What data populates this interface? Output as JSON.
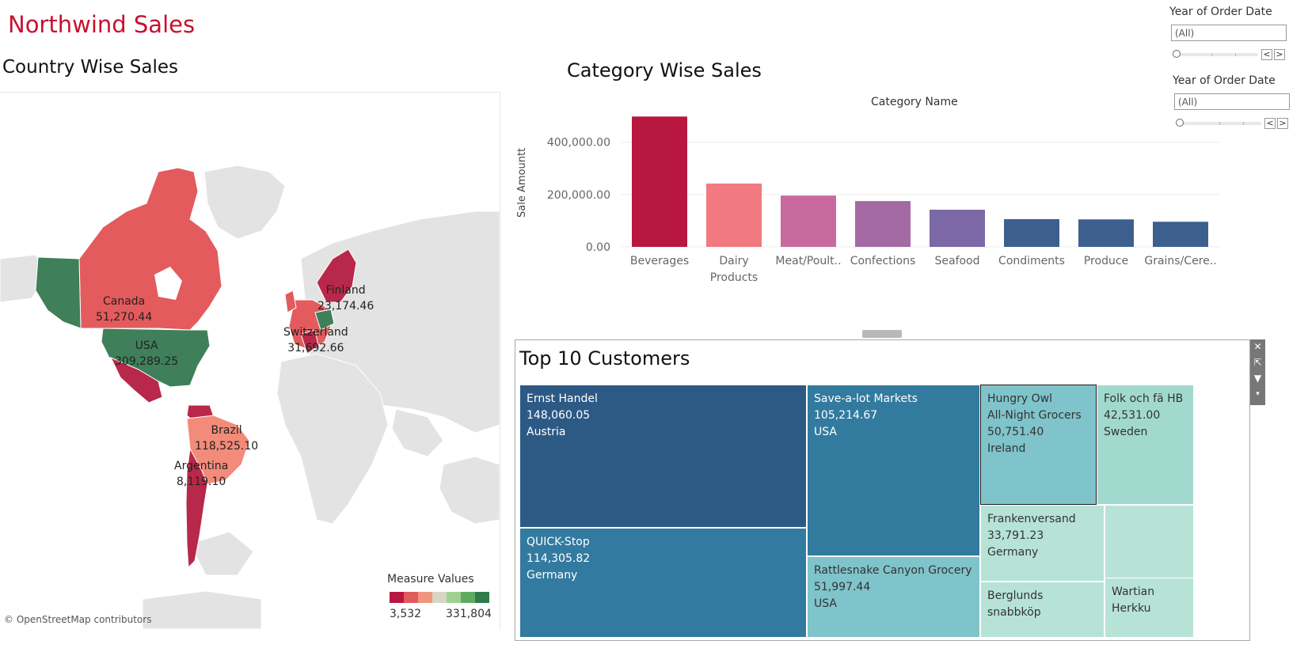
{
  "dashboard": {
    "title": "Northwind Sales"
  },
  "filters": [
    {
      "label": "Year of Order Date",
      "value": "(All)",
      "prev": "<",
      "next": ">"
    },
    {
      "label": "Year of Order Date",
      "value": "(All)",
      "prev": "<",
      "next": ">"
    }
  ],
  "map": {
    "title": "Country  Wise Sales",
    "credit": "© OpenStreetMap contributors",
    "countries": [
      {
        "name": "Canada",
        "value": "51,270.44"
      },
      {
        "name": "USA",
        "value": "309,289.25"
      },
      {
        "name": "Finland",
        "value": "23,174.46"
      },
      {
        "name": "Switzerland",
        "value": "31,692.66"
      },
      {
        "name": "Brazil",
        "value": "118,525.10"
      },
      {
        "name": "Argentina",
        "value": "8,119.10"
      }
    ],
    "legend": {
      "title": "Measure Values",
      "min": "3,532",
      "max": "331,804",
      "colors": [
        "#b8173f",
        "#e05a5e",
        "#f1957e",
        "#d6d6c2",
        "#9fd08f",
        "#5daa61",
        "#2f7b4a"
      ]
    },
    "colors": {
      "red": "#e35b5d",
      "crimson": "#b8284a",
      "salmon": "#f28b7a",
      "green": "#3f7f5a",
      "land": "#e3e3e3"
    }
  },
  "chart_data": {
    "type": "bar",
    "title": "Category Wise Sales",
    "header": "Category Name",
    "ylabel": "Sale Amountt",
    "categories": [
      "Beverages",
      "Dairy\nProducts",
      "Meat/Poult..",
      "Confections",
      "Seafood",
      "Condiments",
      "Produce",
      "Grains/Cere.."
    ],
    "values": [
      498000,
      242000,
      196000,
      175000,
      142000,
      106000,
      105000,
      96000
    ],
    "colors": [
      "#b8173f",
      "#f07a80",
      "#c96a9e",
      "#a569a4",
      "#7c68a6",
      "#3c5f8e",
      "#3c5f8e",
      "#3c5f8e"
    ],
    "yticks": [
      "0.00",
      "200,000.00",
      "400,000.00"
    ],
    "ylim": [
      0,
      520000
    ],
    "grid": true
  },
  "treemap": {
    "title": "Top 10 Customers",
    "tiles": [
      {
        "lines": [
          "Ernst Handel",
          "148,060.05",
          "Austria"
        ],
        "color": "#2d5985"
      },
      {
        "lines": [
          "QUICK-Stop",
          "114,305.82",
          "Germany"
        ],
        "color": "#327aa0"
      },
      {
        "lines": [
          "Save-a-lot Markets",
          "105,214.67",
          "USA"
        ],
        "color": "#337a9f"
      },
      {
        "lines": [
          "Rattlesnake Canyon Grocery",
          "51,997.44",
          "USA"
        ],
        "color": "#7fc3cb"
      },
      {
        "lines": [
          "Hungry Owl",
          "All-Night Grocers",
          "50,751.40",
          "Ireland"
        ],
        "color": "#7fc3cb"
      },
      {
        "lines": [
          "Folk och fä HB",
          "42,531.00",
          "Sweden"
        ],
        "color": "#a2d9ce"
      },
      {
        "lines": [
          "Frankenversand",
          "33,791.23",
          "Germany"
        ],
        "color": "#b7e3d7"
      },
      {
        "lines": [],
        "color": "#b7e3d7"
      },
      {
        "lines": [
          "Berglunds",
          "snabbköp"
        ],
        "color": "#b7e3d7"
      },
      {
        "lines": [
          "Wartian",
          "Herkku"
        ],
        "color": "#b7e3d7"
      }
    ]
  }
}
